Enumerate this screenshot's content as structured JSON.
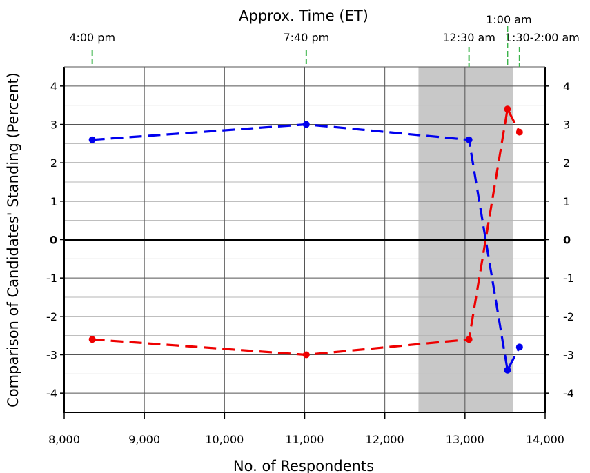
{
  "chart_data": {
    "type": "line",
    "top_axis_title": "Approx. Time (ET)",
    "xlabel": "No. of Respondents",
    "ylabel": "Comparison of Candidates' Standing (Percent)",
    "xlim": [
      8000,
      14000
    ],
    "ylim": [
      -4.5,
      4.5
    ],
    "x_ticks": [
      8000,
      9000,
      10000,
      11000,
      12000,
      13000,
      14000
    ],
    "x_tick_labels": [
      "8,000",
      "9,000",
      "10,000",
      "11,000",
      "12,000",
      "13,000",
      "14,000"
    ],
    "y_ticks": [
      -4,
      -3,
      -2,
      -1,
      0,
      1,
      2,
      3,
      4
    ],
    "y_tick_labels": [
      "-4",
      "-3",
      "-2",
      "-1",
      "0",
      "1",
      "2",
      "3",
      "4"
    ],
    "grid": true,
    "shaded_region": {
      "x_start": 12420,
      "x_end": 13600,
      "color": "#c8c8c8"
    },
    "top_ticks": [
      {
        "x": 8350,
        "label": "4:00 pm"
      },
      {
        "x": 11020,
        "label": "7:40 pm"
      },
      {
        "x": 13050,
        "label": "12:30 am"
      },
      {
        "x": 13530,
        "label": "1:00 am"
      },
      {
        "x": 13680,
        "label": "1:30-2:00 am"
      }
    ],
    "series": [
      {
        "color": "#0000ee",
        "x": [
          8350,
          11020,
          13050,
          13530,
          13680
        ],
        "values": [
          2.6,
          3.0,
          2.6,
          -3.4,
          -2.8
        ]
      },
      {
        "color": "#ee0000",
        "x": [
          8350,
          11020,
          13050,
          13530,
          13680
        ],
        "values": [
          -2.6,
          -3.0,
          -2.6,
          3.4,
          2.8
        ]
      }
    ]
  }
}
